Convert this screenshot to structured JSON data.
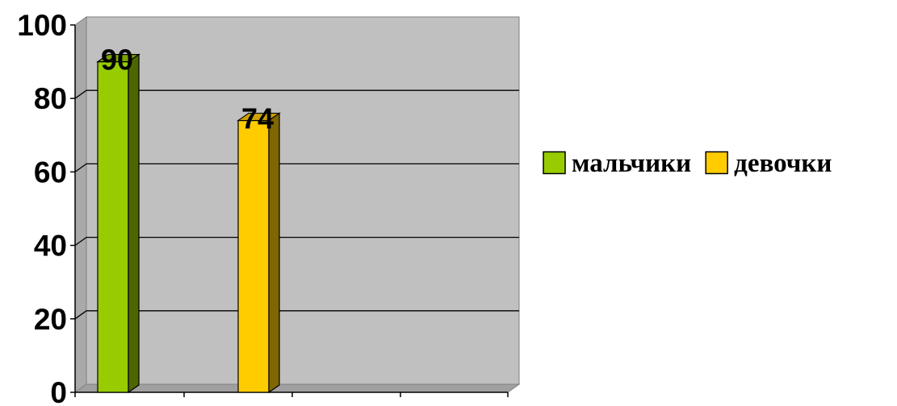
{
  "chart_data": {
    "type": "bar",
    "style": "3d-clustered-column",
    "categories": [
      ""
    ],
    "series": [
      {
        "name": "мальчики",
        "values": [
          90
        ],
        "color": "#99CC00"
      },
      {
        "name": "девочки",
        "values": [
          74
        ],
        "color": "#FFCC00"
      }
    ],
    "ylim": [
      0,
      100
    ],
    "yticks": [
      0,
      20,
      40,
      60,
      80,
      100
    ],
    "data_labels": true,
    "grid": true,
    "legend": "right",
    "wall_color": "#C0C0C0",
    "title": "",
    "xlabel": "",
    "ylabel": ""
  }
}
